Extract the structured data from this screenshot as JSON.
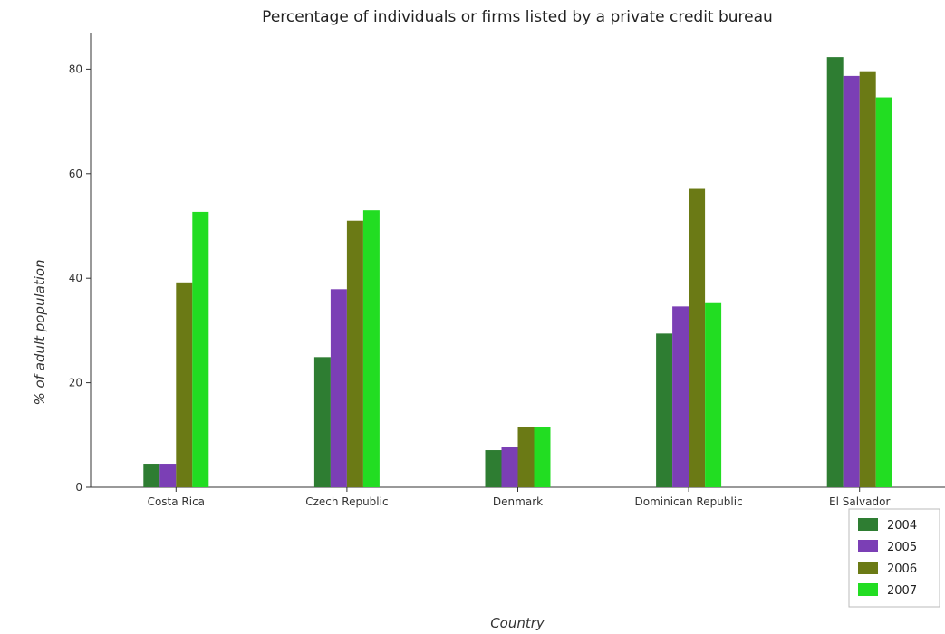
{
  "chart_data": {
    "type": "bar",
    "title": "Percentage of individuals or firms listed by a private credit bureau",
    "xlabel": "Country",
    "ylabel": "% of adult population",
    "categories": [
      "Costa Rica",
      "Czech Republic",
      "Denmark",
      "Dominican Republic",
      "El Salvador"
    ],
    "series": [
      {
        "name": "2004",
        "color": "#2e7d32",
        "values": [
          4.5,
          24.9,
          7.1,
          29.4,
          82.3
        ]
      },
      {
        "name": "2005",
        "color": "#7b3fb5",
        "values": [
          4.5,
          37.9,
          7.7,
          34.6,
          78.7
        ]
      },
      {
        "name": "2006",
        "color": "#6b7a15",
        "values": [
          39.2,
          51.0,
          11.5,
          57.1,
          79.6
        ]
      },
      {
        "name": "2007",
        "color": "#22dd22",
        "values": [
          52.7,
          53.0,
          11.5,
          35.4,
          74.6
        ]
      }
    ],
    "ylim": [
      0,
      87
    ],
    "yticks": [
      0,
      20,
      40,
      60,
      80
    ],
    "grid": false,
    "legend_position": "bottom-right"
  }
}
